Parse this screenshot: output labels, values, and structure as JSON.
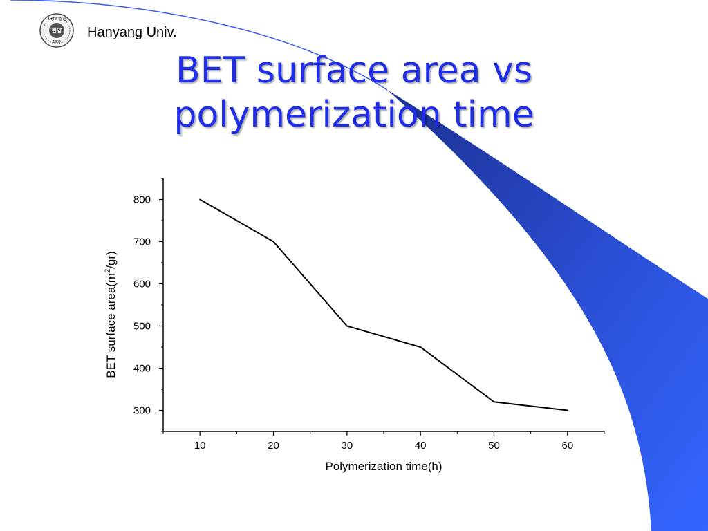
{
  "header": {
    "org_name": "Hanyang Univ.",
    "logo_icon": "university-seal-icon",
    "logo_text_top": "사랑의 실천",
    "logo_text_center": "한양",
    "logo_text_year": "1939"
  },
  "slide": {
    "title_line1": "BET surface area vs",
    "title_line2": "polymerization time"
  },
  "colors": {
    "title": "#1f2ee6",
    "swoosh_dark": "#1b2f8f",
    "swoosh_light": "#3366ff",
    "line": "#000000"
  },
  "chart_data": {
    "type": "line",
    "title": "",
    "xlabel": "Polymerization time(h)",
    "ylabel": "BET surface area(m2/gr)",
    "x": [
      10,
      20,
      30,
      40,
      50,
      60
    ],
    "series": [
      {
        "values": [
          800,
          700,
          500,
          450,
          320,
          300
        ]
      }
    ],
    "x_ticks": [
      10,
      20,
      30,
      40,
      50,
      60
    ],
    "y_ticks": [
      300,
      400,
      500,
      600,
      700,
      800
    ],
    "xlim": [
      5,
      65
    ],
    "ylim": [
      250,
      850
    ],
    "grid": false,
    "legend": "none"
  }
}
